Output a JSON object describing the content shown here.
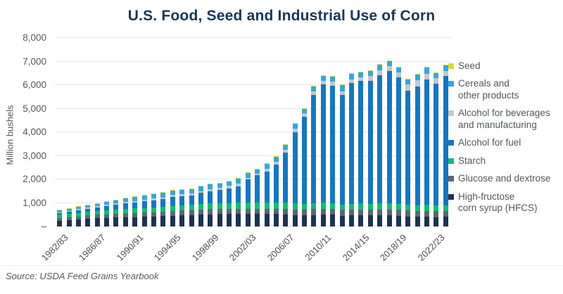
{
  "title": "U.S. Food, Seed and Industrial Use of Corn",
  "source": "Source: USDA Feed Grains Yearbook",
  "y_axis": {
    "label": "Million bushels"
  },
  "chart_data": {
    "type": "bar",
    "stacked": true,
    "title": "U.S. Food, Seed and Industrial Use of Corn",
    "xlabel": "",
    "ylabel": "Million bushels",
    "ylim": [
      0,
      8000
    ],
    "grid": "horizontal",
    "legend_position": "right",
    "yticks": [
      {
        "value": 8000,
        "label": "8,000"
      },
      {
        "value": 7000,
        "label": "7,000"
      },
      {
        "value": 6000,
        "label": "6,000"
      },
      {
        "value": 5000,
        "label": "5,000"
      },
      {
        "value": 4000,
        "label": "4,000"
      },
      {
        "value": 3000,
        "label": "3,000"
      },
      {
        "value": 2000,
        "label": "2,000"
      },
      {
        "value": 1000,
        "label": "1,000"
      },
      {
        "value": 0,
        "label": "–"
      }
    ],
    "categories": [
      "1982/83",
      "1983/84",
      "1984/85",
      "1985/86",
      "1986/87",
      "1987/88",
      "1988/89",
      "1989/90",
      "1990/91",
      "1991/92",
      "1992/93",
      "1993/94",
      "1994/95",
      "1995/96",
      "1996/97",
      "1997/98",
      "1998/99",
      "1999/00",
      "2000/01",
      "2001/02",
      "2002/03",
      "2003/04",
      "2004/05",
      "2005/06",
      "2006/07",
      "2007/08",
      "2008/09",
      "2009/10",
      "2010/11",
      "2011/12",
      "2012/13",
      "2013/14",
      "2014/15",
      "2015/16",
      "2016/17",
      "2017/18",
      "2018/19",
      "2019/20",
      "2020/21",
      "2021/22",
      "2022/23",
      "2023/24"
    ],
    "x_tick_every": 4,
    "x_tick_labels": [
      "1982/83",
      "1986/87",
      "1990/91",
      "1994/95",
      "1998/99",
      "2002/03",
      "2006/07",
      "2010/11",
      "2014/15",
      "2018/19",
      "2022/23"
    ],
    "series": [
      {
        "name": "High-fructose corn syrup (HFCS)",
        "color": "#1d3251",
        "values": [
          240,
          260,
          290,
          320,
          345,
          365,
          380,
          390,
          395,
          405,
          420,
          440,
          460,
          475,
          490,
          505,
          520,
          535,
          530,
          530,
          530,
          530,
          525,
          530,
          510,
          490,
          480,
          490,
          500,
          495,
          460,
          465,
          470,
          465,
          470,
          465,
          450,
          425,
          410,
          415,
          400,
          405
        ]
      },
      {
        "name": "Glucose and dextrose",
        "color": "#5d666f",
        "values": [
          130,
          135,
          140,
          145,
          150,
          155,
          160,
          170,
          175,
          180,
          185,
          190,
          195,
          200,
          205,
          210,
          215,
          220,
          220,
          225,
          225,
          230,
          230,
          230,
          230,
          240,
          235,
          250,
          255,
          245,
          245,
          250,
          255,
          255,
          260,
          265,
          260,
          250,
          250,
          255,
          250,
          255
        ]
      },
      {
        "name": "Starch",
        "color": "#0dbf6e",
        "values": [
          135,
          140,
          150,
          155,
          160,
          170,
          175,
          185,
          195,
          200,
          210,
          215,
          220,
          225,
          230,
          235,
          240,
          245,
          245,
          250,
          250,
          255,
          260,
          265,
          270,
          250,
          235,
          250,
          250,
          240,
          235,
          245,
          250,
          245,
          250,
          250,
          245,
          240,
          245,
          250,
          245,
          250
        ]
      },
      {
        "name": "Alcohol for fuel",
        "color": "#1676bf",
        "values": [
          70,
          85,
          110,
          130,
          150,
          180,
          210,
          240,
          260,
          290,
          300,
          310,
          390,
          395,
          400,
          480,
          525,
          560,
          630,
          705,
          995,
          1165,
          1320,
          1600,
          2115,
          3025,
          3710,
          4590,
          5020,
          5000,
          4650,
          5125,
          5200,
          5225,
          5435,
          5605,
          5380,
          4855,
          5030,
          5320,
          5175,
          5480
        ]
      },
      {
        "name": "Alcohol for beverages and manufacturing",
        "color": "#c6c7c9",
        "values": [
          35,
          40,
          45,
          45,
          50,
          55,
          55,
          60,
          65,
          70,
          75,
          80,
          75,
          80,
          70,
          75,
          85,
          80,
          95,
          120,
          70,
          55,
          125,
          130,
          135,
          135,
          135,
          145,
          160,
          165,
          150,
          150,
          155,
          200,
          215,
          220,
          200,
          255,
          260,
          250,
          215,
          195
        ]
      },
      {
        "name": "Cereals and other products",
        "color": "#33a6e0",
        "values": [
          75,
          75,
          90,
          95,
          105,
          115,
          130,
          155,
          170,
          185,
          190,
          195,
          190,
          185,
          185,
          195,
          195,
          190,
          200,
          200,
          200,
          195,
          200,
          205,
          210,
          220,
          195,
          205,
          215,
          215,
          270,
          235,
          210,
          220,
          230,
          225,
          225,
          225,
          245,
          260,
          215,
          245
        ]
      },
      {
        "name": "Seed",
        "color": "#d8df26",
        "values": [
          15,
          15,
          15,
          15,
          20,
          20,
          20,
          20,
          20,
          20,
          20,
          20,
          20,
          20,
          20,
          20,
          20,
          20,
          20,
          20,
          20,
          20,
          20,
          20,
          20,
          30,
          30,
          30,
          30,
          30,
          30,
          30,
          30,
          30,
          30,
          30,
          30,
          30,
          30,
          30,
          30,
          30
        ]
      }
    ],
    "legend": [
      {
        "label": "Seed",
        "color": "#d8df26"
      },
      {
        "label": "Cereals and\nother products",
        "color": "#33a6e0"
      },
      {
        "label": "Alcohol for beverages\nand manufacturing",
        "color": "#c6c7c9"
      },
      {
        "label": "Alcohol for fuel",
        "color": "#1676bf"
      },
      {
        "label": "Starch",
        "color": "#0dbf6e"
      },
      {
        "label": "Glucose and dextrose",
        "color": "#5d666f"
      },
      {
        "label": "High-fructose\ncorn syrup (HFCS)",
        "color": "#1d3251"
      }
    ]
  }
}
